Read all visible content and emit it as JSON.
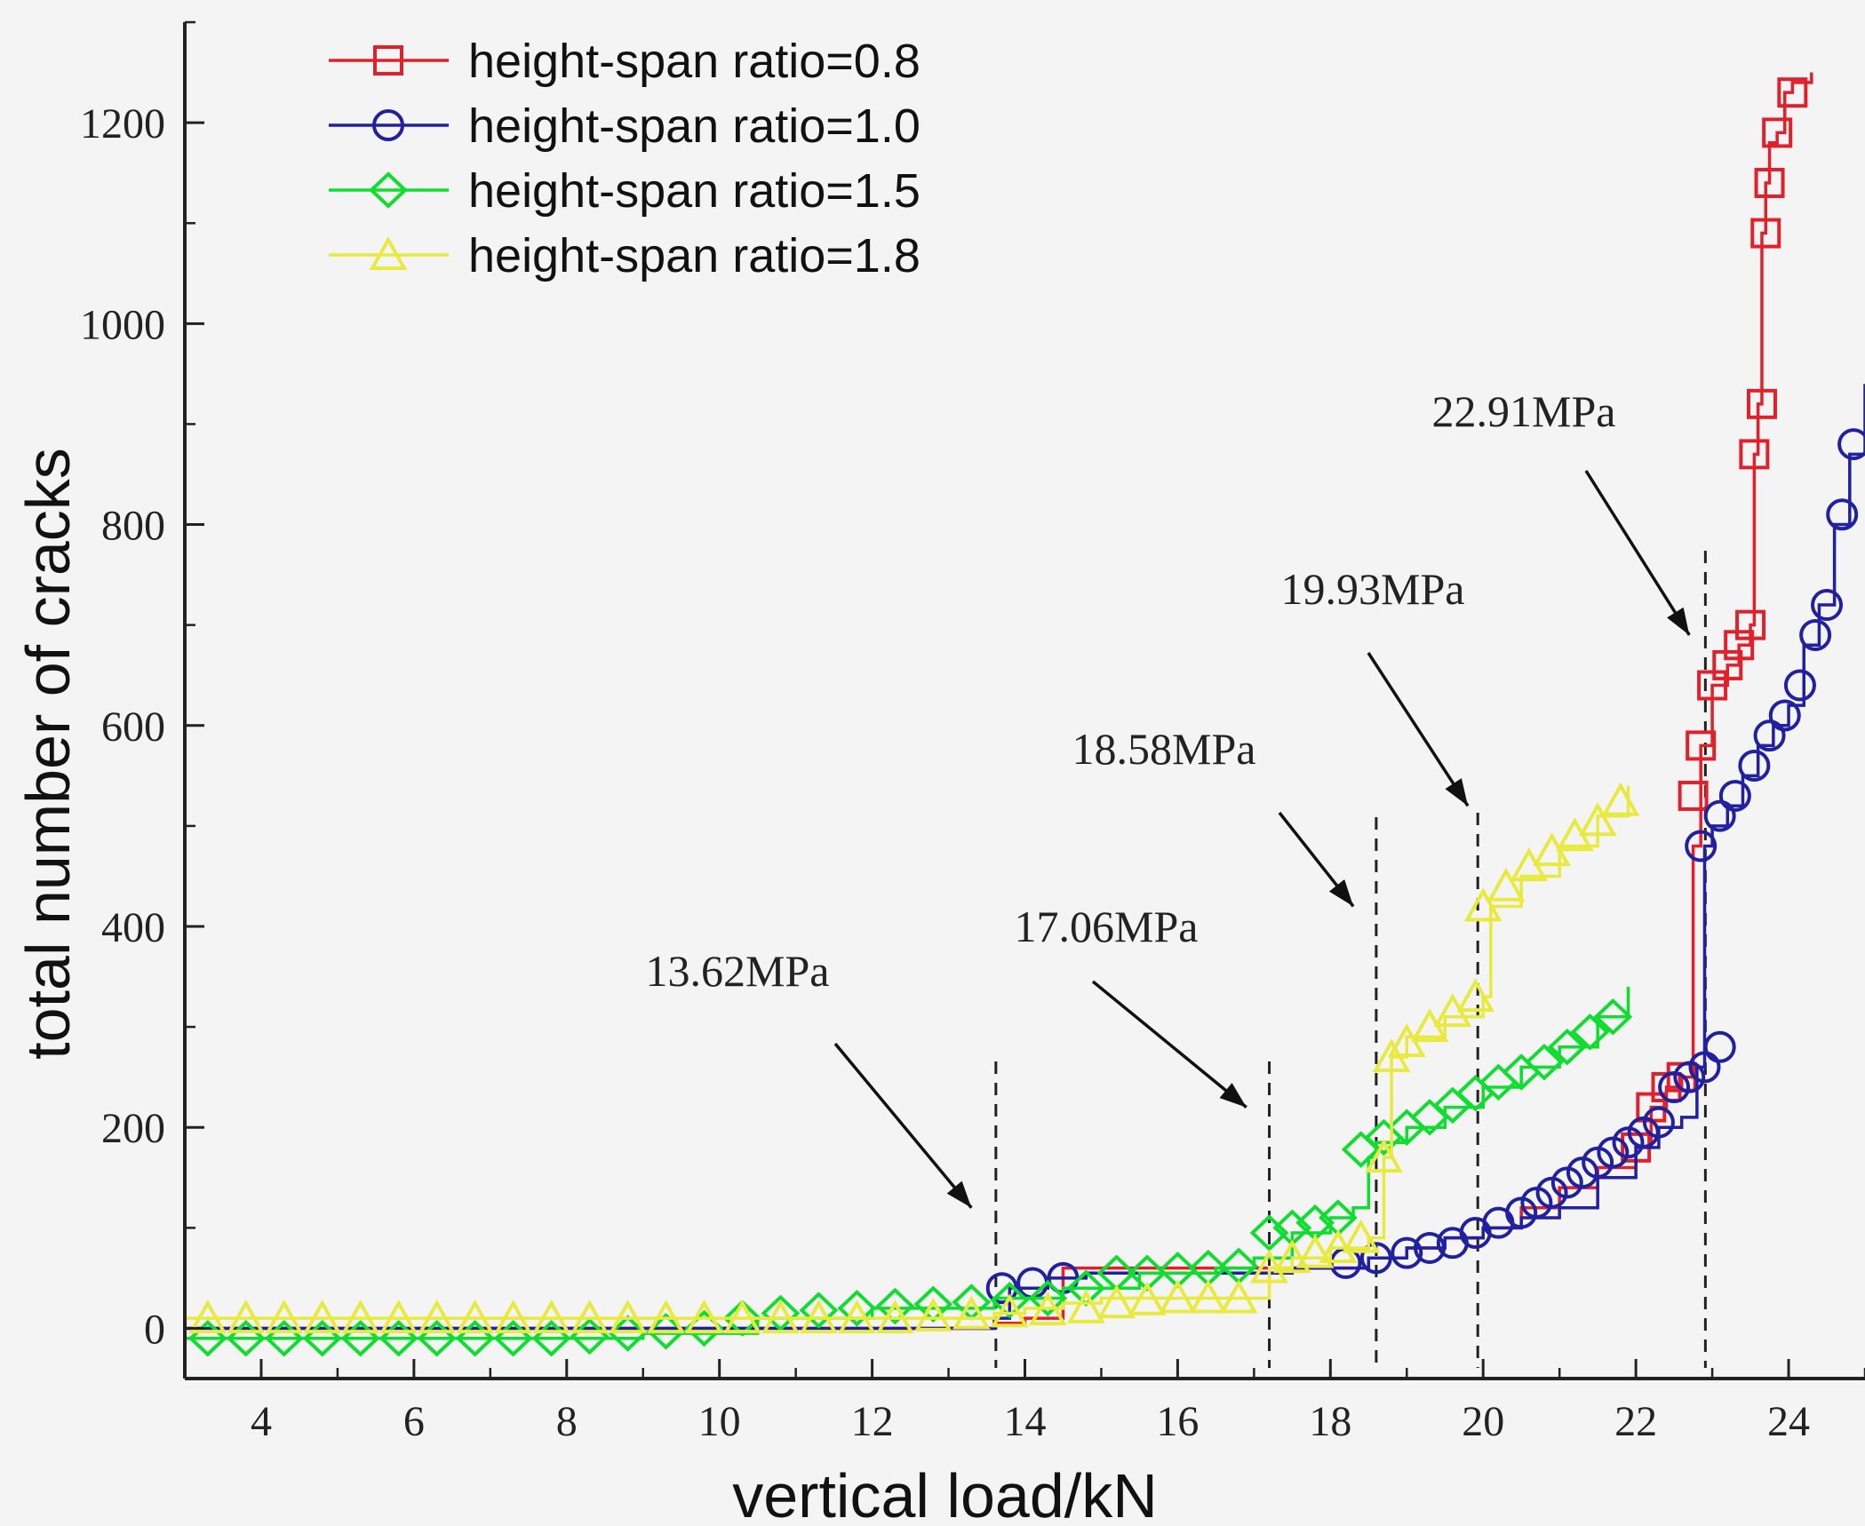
{
  "chart_data": {
    "type": "line",
    "title": "",
    "xlabel": "vertical load/kN",
    "ylabel": "total number of cracks",
    "xlim": [
      3,
      25
    ],
    "ylim": [
      -50,
      1300
    ],
    "xticks": [
      4,
      6,
      8,
      10,
      12,
      14,
      16,
      18,
      20,
      22,
      24
    ],
    "yticks": [
      0,
      200,
      400,
      600,
      800,
      1000,
      1200
    ],
    "legend_position": "top-left",
    "series": [
      {
        "name": "height-span ratio=0.8",
        "color": "#e0202a",
        "marker": "square",
        "x": [
          3.0,
          5.0,
          8.0,
          10.0,
          12.0,
          13.6,
          14.0,
          14.5,
          15.5,
          16.5,
          17.5,
          18.5,
          19.0,
          19.5,
          20.0,
          20.5,
          21.0,
          21.5,
          22.0,
          22.2,
          22.4,
          22.6,
          22.75,
          22.85,
          23.0,
          23.2,
          23.35,
          23.5,
          23.55,
          23.6,
          23.65,
          23.7,
          23.75,
          23.85,
          23.95,
          24.05,
          24.3
        ],
        "y": [
          0,
          0,
          0,
          0,
          0,
          5,
          10,
          60,
          60,
          60,
          60,
          70,
          80,
          90,
          100,
          120,
          140,
          160,
          180,
          220,
          240,
          250,
          480,
          580,
          640,
          660,
          680,
          700,
          870,
          920,
          1090,
          1140,
          1180,
          1190,
          1230,
          1240,
          1250
        ],
        "markers_x": [
          22.0,
          22.2,
          22.4,
          22.6,
          22.75,
          22.85,
          23.0,
          23.2,
          23.35,
          23.5,
          23.55,
          23.65,
          23.7,
          23.75,
          23.85,
          24.05
        ],
        "markers_y": [
          180,
          220,
          240,
          250,
          530,
          580,
          640,
          660,
          680,
          700,
          870,
          920,
          1090,
          1140,
          1190,
          1230
        ]
      },
      {
        "name": "height-span ratio=1.0",
        "color": "#2020a0",
        "marker": "circle",
        "x": [
          3.0,
          6.0,
          10.0,
          13.6,
          13.8,
          14.3,
          14.8,
          15.5,
          16.5,
          17.5,
          18.0,
          18.5,
          19.0,
          19.5,
          20.0,
          20.5,
          21.0,
          21.5,
          22.0,
          22.3,
          22.6,
          22.8,
          22.9,
          23.0,
          23.2,
          23.4,
          23.6,
          23.8,
          24.0,
          24.2,
          24.4,
          24.6,
          24.8,
          25.0
        ],
        "y": [
          0,
          0,
          0,
          10,
          40,
          50,
          55,
          55,
          55,
          60,
          60,
          70,
          80,
          90,
          100,
          110,
          120,
          150,
          180,
          200,
          210,
          260,
          480,
          500,
          520,
          550,
          580,
          600,
          620,
          680,
          720,
          800,
          870,
          940
        ],
        "markers_x": [
          13.7,
          14.1,
          14.5,
          18.2,
          18.6,
          19.0,
          19.3,
          19.6,
          19.9,
          20.2,
          20.5,
          20.7,
          20.9,
          21.1,
          21.3,
          21.5,
          21.7,
          21.9,
          22.1,
          22.3,
          22.5,
          22.7,
          22.9,
          23.1,
          22.85,
          23.1,
          23.3,
          23.55,
          23.75,
          23.95,
          24.15,
          24.35,
          24.5,
          24.7,
          24.85
        ],
        "markers_y": [
          40,
          45,
          50,
          65,
          70,
          75,
          80,
          85,
          95,
          105,
          115,
          125,
          135,
          145,
          155,
          165,
          175,
          185,
          195,
          205,
          240,
          250,
          260,
          280,
          480,
          510,
          530,
          560,
          590,
          610,
          640,
          690,
          720,
          810,
          880
        ]
      },
      {
        "name": "height-span ratio=1.5",
        "color": "#10dd30",
        "marker": "diamond",
        "x": [
          3.0,
          6.0,
          9.0,
          10.5,
          12.0,
          13.6,
          14.5,
          15.5,
          16.5,
          17.0,
          17.5,
          18.0,
          18.3,
          18.5,
          18.6,
          19.0,
          19.5,
          20.0,
          20.5,
          21.0,
          21.5,
          21.9
        ],
        "y": [
          -10,
          -10,
          -5,
          10,
          20,
          30,
          40,
          55,
          60,
          70,
          95,
          110,
          120,
          170,
          185,
          200,
          220,
          240,
          260,
          280,
          310,
          340
        ],
        "markers_x": [
          3.3,
          3.8,
          4.3,
          4.8,
          5.3,
          5.8,
          6.3,
          6.8,
          7.3,
          7.8,
          8.3,
          8.8,
          9.3,
          9.8,
          10.3,
          10.8,
          11.3,
          11.8,
          12.3,
          12.8,
          13.3,
          13.8,
          14.3,
          14.8,
          15.2,
          15.6,
          16.0,
          16.4,
          16.8,
          17.2,
          17.5,
          17.8,
          18.1,
          18.4,
          18.7,
          19.0,
          19.3,
          19.6,
          19.9,
          20.2,
          20.5,
          20.8,
          21.1,
          21.4,
          21.7
        ],
        "markers_y": [
          -10,
          -10,
          -10,
          -10,
          -10,
          -10,
          -10,
          -10,
          -10,
          -10,
          -8,
          -5,
          -3,
          0,
          10,
          15,
          18,
          20,
          22,
          24,
          26,
          28,
          30,
          40,
          55,
          55,
          58,
          60,
          62,
          95,
          100,
          105,
          110,
          178,
          190,
          200,
          210,
          222,
          234,
          245,
          255,
          265,
          280,
          295,
          310
        ]
      },
      {
        "name": "height-span ratio=1.8",
        "color": "#e8ea40",
        "marker": "triangle",
        "x": [
          3.0,
          6.0,
          9.0,
          12.0,
          13.6,
          14.0,
          14.5,
          15.0,
          16.0,
          17.0,
          17.2,
          17.5,
          18.0,
          18.5,
          18.7,
          18.8,
          19.0,
          19.5,
          20.0,
          20.1,
          20.5,
          21.0,
          21.5,
          21.9
        ],
        "y": [
          10,
          10,
          10,
          10,
          15,
          20,
          25,
          30,
          30,
          30,
          60,
          70,
          80,
          90,
          170,
          270,
          290,
          310,
          330,
          420,
          450,
          480,
          510,
          540
        ],
        "markers_x": [
          3.3,
          3.8,
          4.3,
          4.8,
          5.3,
          5.8,
          6.3,
          6.8,
          7.3,
          7.8,
          8.3,
          8.8,
          9.3,
          9.8,
          10.3,
          10.8,
          11.3,
          11.8,
          12.3,
          12.8,
          13.3,
          13.8,
          14.3,
          14.8,
          15.2,
          15.6,
          16.0,
          16.4,
          16.8,
          17.2,
          17.5,
          17.8,
          18.1,
          18.4,
          18.7,
          18.8,
          19.0,
          19.3,
          19.6,
          19.9,
          20.0,
          20.3,
          20.6,
          20.9,
          21.2,
          21.5,
          21.8
        ],
        "markers_y": [
          10,
          10,
          10,
          10,
          10,
          10,
          10,
          10,
          10,
          10,
          10,
          10,
          10,
          10,
          10,
          10,
          10,
          10,
          10,
          12,
          14,
          16,
          18,
          20,
          25,
          28,
          30,
          30,
          30,
          60,
          70,
          75,
          80,
          90,
          170,
          270,
          285,
          300,
          315,
          330,
          420,
          440,
          460,
          475,
          490,
          505,
          525
        ]
      }
    ],
    "annotations": [
      {
        "text": "13.62MPa",
        "x": 13.62,
        "arrow_tip": [
          13.3,
          120
        ]
      },
      {
        "text": "17.06MPa",
        "x": 17.2,
        "arrow_tip": [
          16.9,
          220
        ]
      },
      {
        "text": "18.58MPa",
        "x": 18.6,
        "arrow_tip": [
          18.3,
          420
        ]
      },
      {
        "text": "19.93MPa",
        "x": 19.93,
        "arrow_tip": [
          19.8,
          520
        ]
      },
      {
        "text": "22.91MPa",
        "x": 22.91,
        "arrow_tip": [
          22.7,
          690
        ]
      }
    ]
  },
  "colors": {
    "axis": "#222222",
    "background": "#f4f4f4",
    "arrow": "#111111"
  }
}
